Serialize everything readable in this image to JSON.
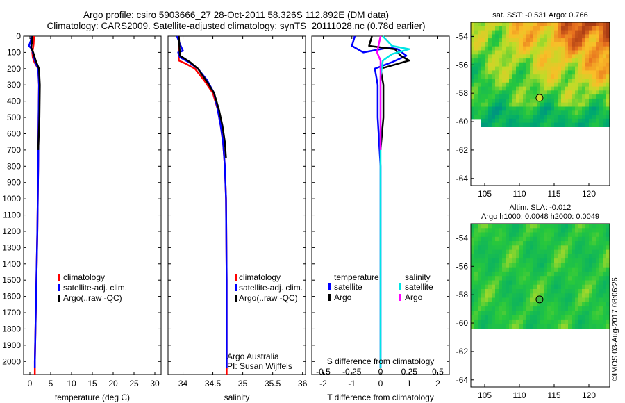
{
  "header": {
    "title_line1": "Argo profile: csiro 5903666_27 28-Oct-2011 58.326S 112.892E (DM data)",
    "title_line2": "Climatology: CARS2009. Satellite-adjusted climatology: synTS_20111028.nc (0.78d earlier)"
  },
  "colors": {
    "climatology": "#ff0000",
    "satellite": "#0000ff",
    "argo": "#000000",
    "salinity_satellite": "#00e5e5",
    "salinity_argo": "#ff00ff"
  },
  "chart_data": [
    {
      "type": "line",
      "id": "temperature",
      "xlabel": "temperature (deg C)",
      "xlim": [
        -1.5,
        31.5
      ],
      "xticks": [
        0,
        5,
        10,
        15,
        20,
        25,
        30
      ],
      "ylim": [
        0,
        2080
      ],
      "yticks": [
        0,
        100,
        200,
        300,
        400,
        500,
        600,
        700,
        800,
        900,
        1000,
        1100,
        1200,
        1300,
        1400,
        1500,
        1600,
        1700,
        1800,
        1900,
        2000
      ],
      "legend": [
        "climatology",
        "satellite-adj. clim.",
        "Argo(..raw -QC)"
      ],
      "series": [
        {
          "name": "climatology",
          "points": [
            [
              1.0,
              0
            ],
            [
              0.9,
              50
            ],
            [
              0.6,
              100
            ],
            [
              0.7,
              130
            ],
            [
              1.1,
              160
            ],
            [
              2.0,
              200
            ],
            [
              2.2,
              300
            ],
            [
              2.1,
              500
            ],
            [
              2.0,
              800
            ],
            [
              1.8,
              1200
            ],
            [
              1.5,
              1600
            ],
            [
              1.2,
              2000
            ],
            [
              1.2,
              2080
            ]
          ]
        },
        {
          "name": "satellite",
          "points": [
            [
              0.4,
              0
            ],
            [
              0.2,
              30
            ],
            [
              -0.2,
              60
            ],
            [
              0.5,
              80
            ],
            [
              0.9,
              120
            ],
            [
              1.3,
              160
            ],
            [
              2.0,
              200
            ],
            [
              2.2,
              300
            ],
            [
              2.1,
              500
            ],
            [
              2.0,
              800
            ],
            [
              1.8,
              1200
            ],
            [
              1.5,
              1600
            ],
            [
              1.2,
              2000
            ],
            [
              1.2,
              2040
            ]
          ]
        },
        {
          "name": "argo",
          "points": [
            [
              0.6,
              0
            ],
            [
              0.5,
              40
            ],
            [
              0.3,
              70
            ],
            [
              0.8,
              100
            ],
            [
              1.4,
              150
            ],
            [
              2.2,
              200
            ],
            [
              2.4,
              300
            ],
            [
              2.3,
              500
            ],
            [
              2.0,
              700
            ]
          ]
        }
      ]
    },
    {
      "type": "line",
      "id": "salinity",
      "xlabel": "salinity",
      "xlim": [
        33.75,
        36.05
      ],
      "xticks": [
        34,
        34.5,
        35,
        35.5,
        36
      ],
      "ylim": [
        0,
        2080
      ],
      "legend": [
        "climatology",
        "satellite-adj. clim.",
        "Argo(..raw -QC)"
      ],
      "annotation": [
        "Argo Australia",
        "PI: Susan Wijffels"
      ],
      "series": [
        {
          "name": "climatology",
          "points": [
            [
              33.93,
              0
            ],
            [
              33.93,
              100
            ],
            [
              33.93,
              150
            ],
            [
              34.05,
              170
            ],
            [
              34.2,
              200
            ],
            [
              34.35,
              270
            ],
            [
              34.5,
              350
            ],
            [
              34.58,
              450
            ],
            [
              34.63,
              550
            ],
            [
              34.67,
              650
            ],
            [
              34.7,
              800
            ],
            [
              34.72,
              1000
            ],
            [
              34.73,
              1500
            ],
            [
              34.73,
              2000
            ],
            [
              34.73,
              2080
            ]
          ]
        },
        {
          "name": "satellite",
          "points": [
            [
              33.9,
              0
            ],
            [
              33.95,
              50
            ],
            [
              34.0,
              90
            ],
            [
              33.92,
              100
            ],
            [
              33.95,
              130
            ],
            [
              34.1,
              160
            ],
            [
              34.25,
              200
            ],
            [
              34.4,
              270
            ],
            [
              34.52,
              350
            ],
            [
              34.58,
              450
            ],
            [
              34.63,
              550
            ],
            [
              34.67,
              650
            ],
            [
              34.7,
              800
            ],
            [
              34.72,
              1000
            ],
            [
              34.73,
              1500
            ],
            [
              34.73,
              2000
            ],
            [
              34.73,
              2040
            ]
          ]
        },
        {
          "name": "argo",
          "points": [
            [
              33.93,
              0
            ],
            [
              33.95,
              120
            ],
            [
              34.12,
              160
            ],
            [
              34.25,
              200
            ],
            [
              34.4,
              280
            ],
            [
              34.52,
              350
            ],
            [
              34.6,
              450
            ],
            [
              34.66,
              550
            ],
            [
              34.7,
              650
            ],
            [
              34.72,
              750
            ]
          ]
        }
      ]
    },
    {
      "type": "line",
      "id": "difference",
      "xlabel": "T difference from climatology",
      "xlabel_top": "S difference from climatology",
      "xlim": [
        -2.4,
        2.4
      ],
      "xticks": [
        -2,
        -1,
        0,
        1,
        2
      ],
      "xticks_top": [
        -0.5,
        -0.25,
        0,
        0.25,
        0.5
      ],
      "xtick_labels_top": [
        "-0.5",
        "-0.25",
        "0",
        "0.25",
        "0.5"
      ],
      "ylim": [
        0,
        2080
      ],
      "legend_titles": [
        "temperature",
        "salinity"
      ],
      "legend": [
        "satellite",
        "Argo",
        "satellite",
        "Argo"
      ],
      "series": [
        {
          "name": "T satellite",
          "points": [
            [
              -0.9,
              0
            ],
            [
              -1.0,
              60
            ],
            [
              -0.6,
              100
            ],
            [
              0.3,
              70
            ],
            [
              0.6,
              80
            ],
            [
              0.9,
              120
            ],
            [
              0.4,
              160
            ],
            [
              -0.2,
              200
            ],
            [
              -0.1,
              300
            ],
            [
              -0.1,
              500
            ],
            [
              0,
              800
            ],
            [
              0,
              2040
            ]
          ]
        },
        {
          "name": "T Argo",
          "points": [
            [
              -0.3,
              0
            ],
            [
              -0.4,
              60
            ],
            [
              0.5,
              80
            ],
            [
              0.7,
              120
            ],
            [
              1.0,
              150
            ],
            [
              0.6,
              170
            ],
            [
              0.0,
              200
            ],
            [
              0.1,
              300
            ],
            [
              0.1,
              500
            ],
            [
              0,
              700
            ]
          ]
        },
        {
          "name": "S satellite",
          "points": [
            [
              0.02,
              0
            ],
            [
              0.1,
              60
            ],
            [
              0.25,
              80
            ],
            [
              0.1,
              110
            ],
            [
              0.02,
              150
            ],
            [
              0.0,
              250
            ],
            [
              0.0,
              500
            ],
            [
              0,
              2040
            ]
          ]
        },
        {
          "name": "S Argo",
          "points": [
            [
              0.0,
              0
            ],
            [
              -0.03,
              100
            ],
            [
              0.0,
              150
            ],
            [
              0.0,
              300
            ],
            [
              0,
              700
            ]
          ]
        }
      ]
    },
    {
      "type": "heatmap",
      "id": "sst_map",
      "title": "sat. SST: -0.531 Argo: 0.766",
      "xticks": [
        105,
        110,
        115,
        120
      ],
      "yticks": [
        -54,
        -56,
        -58,
        -60,
        -62,
        -64
      ],
      "xlim": [
        103,
        123
      ],
      "ylim": [
        -64.5,
        -53
      ],
      "marker": [
        112.892,
        -58.326
      ]
    },
    {
      "type": "heatmap",
      "id": "sla_map",
      "title_line1": "Altim. SLA: -0.012",
      "title_line2": "Argo h1000: 0.0048 h2000: 0.0049",
      "xticks": [
        105,
        110,
        115,
        120
      ],
      "yticks": [
        -54,
        -56,
        -58,
        -60,
        -62,
        -64
      ],
      "xlim": [
        103,
        123
      ],
      "ylim": [
        -64.5,
        -53
      ],
      "marker": [
        112.892,
        -58.326
      ]
    }
  ],
  "footer": {
    "credit": "©IMOS 03-Aug-2017 08:06:26"
  }
}
